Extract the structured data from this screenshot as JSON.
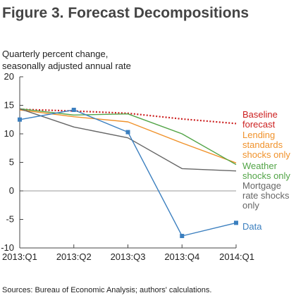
{
  "title": "Figure 3. Forecast Decompositions",
  "ylabel_lines": [
    "Quarterly percent change,",
    "seasonally adjusted annual rate"
  ],
  "source": "Sources: Bureau of Economic Analysis; authors' calculations.",
  "chart_data": {
    "type": "line",
    "title": "Figure 3. Forecast Decompositions",
    "ylabel": "Quarterly percent change, seasonally adjusted annual rate",
    "xlabel": "",
    "categories": [
      "2013:Q1",
      "2013:Q2",
      "2013:Q3",
      "2013:Q4",
      "2014:Q1"
    ],
    "ylim": [
      -10,
      20
    ],
    "yticks": [
      20,
      15,
      10,
      5,
      0,
      -5,
      -10
    ],
    "grid": false,
    "series": [
      {
        "name": "Baseline forecast",
        "label_lines": [
          "Baseline",
          "forecast"
        ],
        "color": "#cc1f1f",
        "style": "dotted",
        "values": [
          14.3,
          14.0,
          13.6,
          12.6,
          11.8
        ]
      },
      {
        "name": "Lending standards shocks only",
        "label_lines": [
          "Lending",
          "standards",
          "shocks only"
        ],
        "color": "#f0922b",
        "style": "solid",
        "values": [
          14.2,
          13.0,
          12.1,
          8.4,
          4.9
        ]
      },
      {
        "name": "Weather shocks only",
        "label_lines": [
          "Weather",
          "shocks only"
        ],
        "color": "#52a447",
        "style": "solid",
        "values": [
          14.4,
          13.3,
          13.5,
          10.0,
          4.6
        ]
      },
      {
        "name": "Mortgage rate shocks only",
        "label_lines": [
          "Mortgage",
          "rate shocks",
          "only"
        ],
        "color": "#666666",
        "style": "solid",
        "values": [
          14.4,
          11.2,
          9.3,
          3.9,
          3.5
        ]
      },
      {
        "name": "Data",
        "label_lines": [
          "Data"
        ],
        "color": "#3b7fbf",
        "style": "markers",
        "values": [
          12.5,
          14.2,
          10.3,
          -7.9,
          -5.6
        ]
      }
    ]
  }
}
